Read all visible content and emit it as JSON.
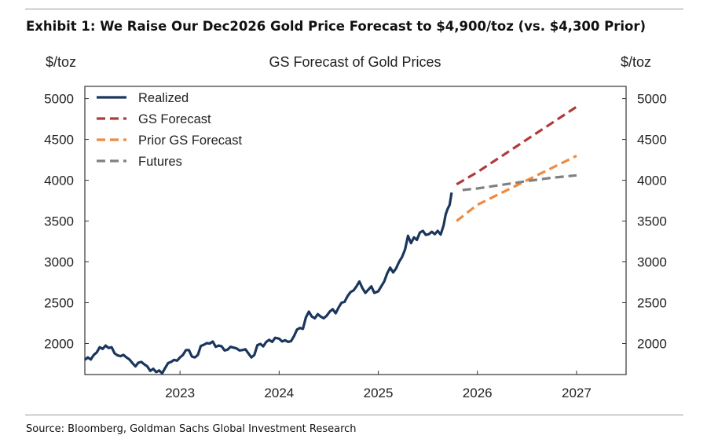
{
  "exhibit": {
    "title": "Exhibit 1: We Raise Our Dec2026 Gold Price Forecast to $4,900/toz (vs. $4,300 Prior)",
    "source": "Source: Bloomberg, Goldman Sachs Global Investment Research"
  },
  "chart_data": {
    "type": "line",
    "title": "GS Forecast of Gold Prices",
    "ylabel_left": "$/toz",
    "ylabel_right": "$/toz",
    "xlim": [
      2022.04,
      2027.5
    ],
    "ylim": [
      1620,
      5150
    ],
    "yticks": [
      2000,
      2500,
      3000,
      3500,
      4000,
      4500,
      5000
    ],
    "xticks": [
      2023,
      2024,
      2025,
      2026,
      2027
    ],
    "legend_position": "top-left",
    "grid": false,
    "colors": {
      "Realized": "#1b365d",
      "GS Forecast": "#b23a3a",
      "Prior GS Forecast": "#f08a3c",
      "Futures": "#808080"
    },
    "series": [
      {
        "name": "Realized",
        "style": "solid",
        "points": [
          [
            2022.04,
            1800
          ],
          [
            2022.07,
            1830
          ],
          [
            2022.1,
            1805
          ],
          [
            2022.13,
            1860
          ],
          [
            2022.16,
            1890
          ],
          [
            2022.19,
            1955
          ],
          [
            2022.22,
            1935
          ],
          [
            2022.25,
            1975
          ],
          [
            2022.28,
            1945
          ],
          [
            2022.31,
            1955
          ],
          [
            2022.34,
            1880
          ],
          [
            2022.37,
            1855
          ],
          [
            2022.4,
            1845
          ],
          [
            2022.43,
            1860
          ],
          [
            2022.46,
            1830
          ],
          [
            2022.49,
            1805
          ],
          [
            2022.52,
            1760
          ],
          [
            2022.55,
            1720
          ],
          [
            2022.58,
            1765
          ],
          [
            2022.61,
            1775
          ],
          [
            2022.64,
            1745
          ],
          [
            2022.67,
            1720
          ],
          [
            2022.7,
            1665
          ],
          [
            2022.73,
            1690
          ],
          [
            2022.76,
            1650
          ],
          [
            2022.79,
            1670
          ],
          [
            2022.82,
            1635
          ],
          [
            2022.85,
            1700
          ],
          [
            2022.88,
            1760
          ],
          [
            2022.91,
            1775
          ],
          [
            2022.94,
            1800
          ],
          [
            2022.97,
            1790
          ],
          [
            2023.0,
            1830
          ],
          [
            2023.03,
            1860
          ],
          [
            2023.06,
            1920
          ],
          [
            2023.09,
            1920
          ],
          [
            2023.12,
            1840
          ],
          [
            2023.15,
            1830
          ],
          [
            2023.18,
            1860
          ],
          [
            2023.21,
            1970
          ],
          [
            2023.24,
            1985
          ],
          [
            2023.27,
            2005
          ],
          [
            2023.3,
            2000
          ],
          [
            2023.33,
            2025
          ],
          [
            2023.36,
            1960
          ],
          [
            2023.39,
            1975
          ],
          [
            2023.42,
            1965
          ],
          [
            2023.45,
            1915
          ],
          [
            2023.48,
            1925
          ],
          [
            2023.51,
            1960
          ],
          [
            2023.54,
            1950
          ],
          [
            2023.57,
            1940
          ],
          [
            2023.6,
            1915
          ],
          [
            2023.63,
            1920
          ],
          [
            2023.66,
            1930
          ],
          [
            2023.69,
            1880
          ],
          [
            2023.72,
            1830
          ],
          [
            2023.75,
            1860
          ],
          [
            2023.78,
            1980
          ],
          [
            2023.81,
            1995
          ],
          [
            2023.84,
            1965
          ],
          [
            2023.87,
            2020
          ],
          [
            2023.9,
            2045
          ],
          [
            2023.93,
            2020
          ],
          [
            2023.96,
            2070
          ],
          [
            2024.0,
            2060
          ],
          [
            2024.03,
            2025
          ],
          [
            2024.06,
            2040
          ],
          [
            2024.09,
            2020
          ],
          [
            2024.12,
            2030
          ],
          [
            2024.15,
            2090
          ],
          [
            2024.18,
            2170
          ],
          [
            2024.21,
            2190
          ],
          [
            2024.24,
            2180
          ],
          [
            2024.27,
            2320
          ],
          [
            2024.3,
            2390
          ],
          [
            2024.33,
            2330
          ],
          [
            2024.36,
            2310
          ],
          [
            2024.39,
            2360
          ],
          [
            2024.42,
            2330
          ],
          [
            2024.45,
            2310
          ],
          [
            2024.48,
            2340
          ],
          [
            2024.51,
            2390
          ],
          [
            2024.54,
            2420
          ],
          [
            2024.57,
            2370
          ],
          [
            2024.6,
            2440
          ],
          [
            2024.63,
            2500
          ],
          [
            2024.66,
            2510
          ],
          [
            2024.69,
            2580
          ],
          [
            2024.72,
            2630
          ],
          [
            2024.75,
            2650
          ],
          [
            2024.78,
            2700
          ],
          [
            2024.81,
            2760
          ],
          [
            2024.84,
            2680
          ],
          [
            2024.87,
            2620
          ],
          [
            2024.9,
            2660
          ],
          [
            2024.93,
            2700
          ],
          [
            2024.96,
            2620
          ],
          [
            2025.0,
            2640
          ],
          [
            2025.03,
            2700
          ],
          [
            2025.06,
            2760
          ],
          [
            2025.09,
            2860
          ],
          [
            2025.12,
            2930
          ],
          [
            2025.15,
            2870
          ],
          [
            2025.18,
            2920
          ],
          [
            2025.21,
            3000
          ],
          [
            2025.24,
            3060
          ],
          [
            2025.27,
            3150
          ],
          [
            2025.3,
            3320
          ],
          [
            2025.33,
            3230
          ],
          [
            2025.36,
            3300
          ],
          [
            2025.39,
            3270
          ],
          [
            2025.42,
            3360
          ],
          [
            2025.45,
            3380
          ],
          [
            2025.48,
            3330
          ],
          [
            2025.51,
            3340
          ],
          [
            2025.54,
            3370
          ],
          [
            2025.57,
            3340
          ],
          [
            2025.6,
            3380
          ],
          [
            2025.63,
            3335
          ],
          [
            2025.66,
            3450
          ],
          [
            2025.68,
            3580
          ],
          [
            2025.7,
            3650
          ],
          [
            2025.72,
            3700
          ],
          [
            2025.74,
            3850
          ]
        ]
      },
      {
        "name": "GS Forecast",
        "style": "dashed",
        "points": [
          [
            2025.79,
            3950
          ],
          [
            2026.0,
            4100
          ],
          [
            2026.25,
            4300
          ],
          [
            2026.5,
            4500
          ],
          [
            2026.75,
            4700
          ],
          [
            2027.0,
            4900
          ]
        ]
      },
      {
        "name": "Prior GS Forecast",
        "style": "dashed",
        "points": [
          [
            2025.79,
            3500
          ],
          [
            2026.0,
            3700
          ],
          [
            2026.25,
            3850
          ],
          [
            2026.5,
            4000
          ],
          [
            2026.75,
            4150
          ],
          [
            2027.0,
            4300
          ]
        ]
      },
      {
        "name": "Futures",
        "style": "dashed",
        "points": [
          [
            2025.85,
            3880
          ],
          [
            2026.0,
            3900
          ],
          [
            2026.25,
            3945
          ],
          [
            2026.5,
            3990
          ],
          [
            2026.75,
            4030
          ],
          [
            2027.0,
            4060
          ]
        ]
      }
    ]
  }
}
